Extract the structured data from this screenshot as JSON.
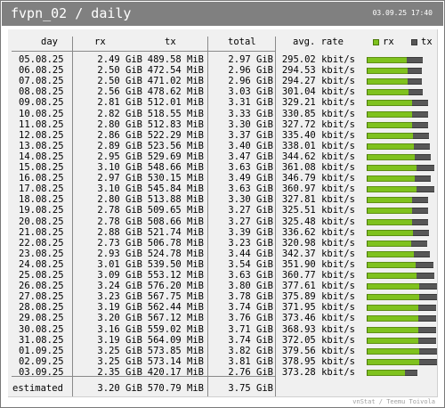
{
  "header": {
    "title": "fvpn_02 / daily",
    "timestamp": "03.09.25 17:40"
  },
  "columns": {
    "day": "day",
    "rx": "rx",
    "tx": "tx",
    "total": "total",
    "avg_rate": "avg. rate"
  },
  "legend": {
    "rx": "rx",
    "tx": "tx"
  },
  "colors": {
    "rx": "#7fc21e",
    "tx": "#575757",
    "header_bg": "#808080",
    "panel_bg": "#f0f0f0"
  },
  "rows": [
    {
      "day": "05.08.25",
      "rx": "2.49 GiB",
      "tx": "489.58 MiB",
      "total": "2.97 GiB",
      "rate": "295.02 kbit/s"
    },
    {
      "day": "06.08.25",
      "rx": "2.50 GiB",
      "tx": "472.54 MiB",
      "total": "2.96 GiB",
      "rate": "294.53 kbit/s"
    },
    {
      "day": "07.08.25",
      "rx": "2.50 GiB",
      "tx": "471.02 MiB",
      "total": "2.96 GiB",
      "rate": "294.27 kbit/s"
    },
    {
      "day": "08.08.25",
      "rx": "2.56 GiB",
      "tx": "478.62 MiB",
      "total": "3.03 GiB",
      "rate": "301.04 kbit/s"
    },
    {
      "day": "09.08.25",
      "rx": "2.81 GiB",
      "tx": "512.01 MiB",
      "total": "3.31 GiB",
      "rate": "329.21 kbit/s"
    },
    {
      "day": "10.08.25",
      "rx": "2.82 GiB",
      "tx": "518.55 MiB",
      "total": "3.33 GiB",
      "rate": "330.85 kbit/s"
    },
    {
      "day": "11.08.25",
      "rx": "2.80 GiB",
      "tx": "512.83 MiB",
      "total": "3.30 GiB",
      "rate": "327.72 kbit/s"
    },
    {
      "day": "12.08.25",
      "rx": "2.86 GiB",
      "tx": "522.29 MiB",
      "total": "3.37 GiB",
      "rate": "335.40 kbit/s"
    },
    {
      "day": "13.08.25",
      "rx": "2.89 GiB",
      "tx": "523.56 MiB",
      "total": "3.40 GiB",
      "rate": "338.01 kbit/s"
    },
    {
      "day": "14.08.25",
      "rx": "2.95 GiB",
      "tx": "529.69 MiB",
      "total": "3.47 GiB",
      "rate": "344.62 kbit/s"
    },
    {
      "day": "15.08.25",
      "rx": "3.10 GiB",
      "tx": "548.66 MiB",
      "total": "3.63 GiB",
      "rate": "361.08 kbit/s"
    },
    {
      "day": "16.08.25",
      "rx": "2.97 GiB",
      "tx": "530.15 MiB",
      "total": "3.49 GiB",
      "rate": "346.79 kbit/s"
    },
    {
      "day": "17.08.25",
      "rx": "3.10 GiB",
      "tx": "545.84 MiB",
      "total": "3.63 GiB",
      "rate": "360.97 kbit/s"
    },
    {
      "day": "18.08.25",
      "rx": "2.80 GiB",
      "tx": "513.88 MiB",
      "total": "3.30 GiB",
      "rate": "327.81 kbit/s"
    },
    {
      "day": "19.08.25",
      "rx": "2.78 GiB",
      "tx": "509.65 MiB",
      "total": "3.27 GiB",
      "rate": "325.51 kbit/s"
    },
    {
      "day": "20.08.25",
      "rx": "2.78 GiB",
      "tx": "508.66 MiB",
      "total": "3.27 GiB",
      "rate": "325.48 kbit/s"
    },
    {
      "day": "21.08.25",
      "rx": "2.88 GiB",
      "tx": "521.74 MiB",
      "total": "3.39 GiB",
      "rate": "336.62 kbit/s"
    },
    {
      "day": "22.08.25",
      "rx": "2.73 GiB",
      "tx": "506.78 MiB",
      "total": "3.23 GiB",
      "rate": "320.98 kbit/s"
    },
    {
      "day": "23.08.25",
      "rx": "2.93 GiB",
      "tx": "524.78 MiB",
      "total": "3.44 GiB",
      "rate": "342.37 kbit/s"
    },
    {
      "day": "24.08.25",
      "rx": "3.01 GiB",
      "tx": "539.50 MiB",
      "total": "3.54 GiB",
      "rate": "351.90 kbit/s"
    },
    {
      "day": "25.08.25",
      "rx": "3.09 GiB",
      "tx": "553.12 MiB",
      "total": "3.63 GiB",
      "rate": "360.77 kbit/s"
    },
    {
      "day": "26.08.25",
      "rx": "3.24 GiB",
      "tx": "576.20 MiB",
      "total": "3.80 GiB",
      "rate": "377.61 kbit/s"
    },
    {
      "day": "27.08.25",
      "rx": "3.23 GiB",
      "tx": "567.75 MiB",
      "total": "3.78 GiB",
      "rate": "375.89 kbit/s"
    },
    {
      "day": "28.08.25",
      "rx": "3.19 GiB",
      "tx": "562.44 MiB",
      "total": "3.74 GiB",
      "rate": "371.95 kbit/s"
    },
    {
      "day": "29.08.25",
      "rx": "3.20 GiB",
      "tx": "567.12 MiB",
      "total": "3.76 GiB",
      "rate": "373.46 kbit/s"
    },
    {
      "day": "30.08.25",
      "rx": "3.16 GiB",
      "tx": "559.02 MiB",
      "total": "3.71 GiB",
      "rate": "368.93 kbit/s"
    },
    {
      "day": "31.08.25",
      "rx": "3.19 GiB",
      "tx": "564.09 MiB",
      "total": "3.74 GiB",
      "rate": "372.05 kbit/s"
    },
    {
      "day": "01.09.25",
      "rx": "3.25 GiB",
      "tx": "573.85 MiB",
      "total": "3.82 GiB",
      "rate": "379.56 kbit/s"
    },
    {
      "day": "02.09.25",
      "rx": "3.25 GiB",
      "tx": "573.14 MiB",
      "total": "3.81 GiB",
      "rate": "378.95 kbit/s"
    },
    {
      "day": "03.09.25",
      "rx": "2.35 GiB",
      "tx": "420.17 MiB",
      "total": "2.76 GiB",
      "rate": "373.28 kbit/s"
    }
  ],
  "bars": [
    {
      "rx": 2.49,
      "tx": 0.478
    },
    {
      "rx": 2.5,
      "tx": 0.461
    },
    {
      "rx": 2.5,
      "tx": 0.46
    },
    {
      "rx": 2.56,
      "tx": 0.467
    },
    {
      "rx": 2.81,
      "tx": 0.5
    },
    {
      "rx": 2.82,
      "tx": 0.506
    },
    {
      "rx": 2.8,
      "tx": 0.501
    },
    {
      "rx": 2.86,
      "tx": 0.51
    },
    {
      "rx": 2.89,
      "tx": 0.511
    },
    {
      "rx": 2.95,
      "tx": 0.517
    },
    {
      "rx": 3.1,
      "tx": 0.536
    },
    {
      "rx": 2.97,
      "tx": 0.518
    },
    {
      "rx": 3.1,
      "tx": 0.533
    },
    {
      "rx": 2.8,
      "tx": 0.502
    },
    {
      "rx": 2.78,
      "tx": 0.498
    },
    {
      "rx": 2.78,
      "tx": 0.497
    },
    {
      "rx": 2.88,
      "tx": 0.51
    },
    {
      "rx": 2.73,
      "tx": 0.495
    },
    {
      "rx": 2.93,
      "tx": 0.512
    },
    {
      "rx": 3.01,
      "tx": 0.527
    },
    {
      "rx": 3.09,
      "tx": 0.54
    },
    {
      "rx": 3.24,
      "tx": 0.563
    },
    {
      "rx": 3.23,
      "tx": 0.554
    },
    {
      "rx": 3.19,
      "tx": 0.549
    },
    {
      "rx": 3.2,
      "tx": 0.554
    },
    {
      "rx": 3.16,
      "tx": 0.546
    },
    {
      "rx": 3.19,
      "tx": 0.551
    },
    {
      "rx": 3.25,
      "tx": 0.56
    },
    {
      "rx": 3.25,
      "tx": 0.56
    },
    {
      "rx": 2.35,
      "tx": 0.41
    }
  ],
  "estimated": {
    "label": "estimated",
    "rx": "3.20 GiB",
    "tx": "570.79 MiB",
    "total": "3.75 GiB"
  },
  "credit": "vnStat / Teemu Toivola"
}
